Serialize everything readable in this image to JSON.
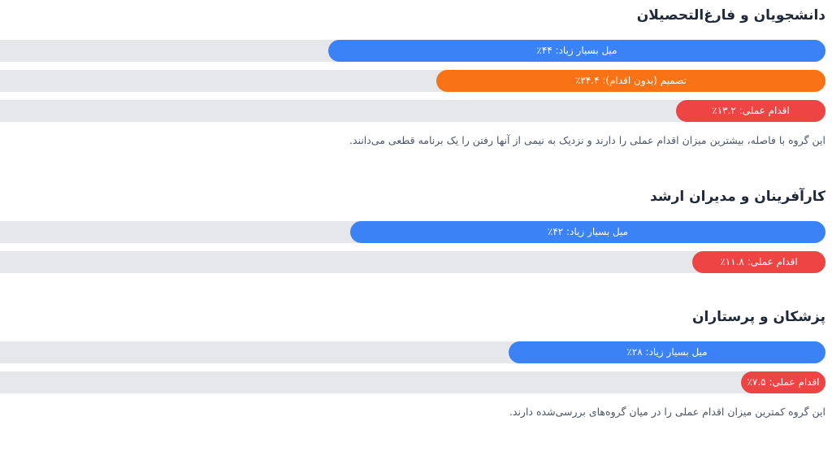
{
  "colors": {
    "blue": "#3b82f6",
    "orange": "#f97316",
    "red": "#ef4444",
    "track": "#e5e7eb"
  },
  "chart_data": [
    {
      "type": "bar",
      "title": "دانشجویان و فارغ‌التحصیلان",
      "bars": [
        {
          "label": "میل بسیار زیاد: ۴۴٪",
          "value": 44,
          "color": "#3b82f6"
        },
        {
          "label": "تصمیم (بدون اقدام): ۳۴.۴٪",
          "value": 34.4,
          "color": "#f97316"
        },
        {
          "label": "اقدام عملی: ۱۳.۲٪",
          "value": 13.2,
          "color": "#ef4444"
        }
      ],
      "note": "این گروه با فاصله، بیشترین میزان اقدام عملی را دارند و نزدیک به نیمی از آنها رفتن را یک برنامه قطعی می‌دانند."
    },
    {
      "type": "bar",
      "title": "کارآفرینان و مدیران ارشد",
      "bars": [
        {
          "label": "میل بسیار زیاد: ۴۲٪",
          "value": 42,
          "color": "#3b82f6"
        },
        {
          "label": "اقدام عملی: ۱۱.۸٪",
          "value": 11.8,
          "color": "#ef4444"
        }
      ],
      "note": ""
    },
    {
      "type": "bar",
      "title": "پزشکان و پرستاران",
      "bars": [
        {
          "label": "میل بسیار زیاد: ۲۸٪",
          "value": 28,
          "color": "#3b82f6"
        },
        {
          "label": "اقدام عملی: ۷.۵٪",
          "value": 7.5,
          "color": "#ef4444"
        }
      ],
      "note": "این گروه کمترین میزان اقدام عملی را در میان گروه‌های بررسی‌شده دارند."
    }
  ]
}
